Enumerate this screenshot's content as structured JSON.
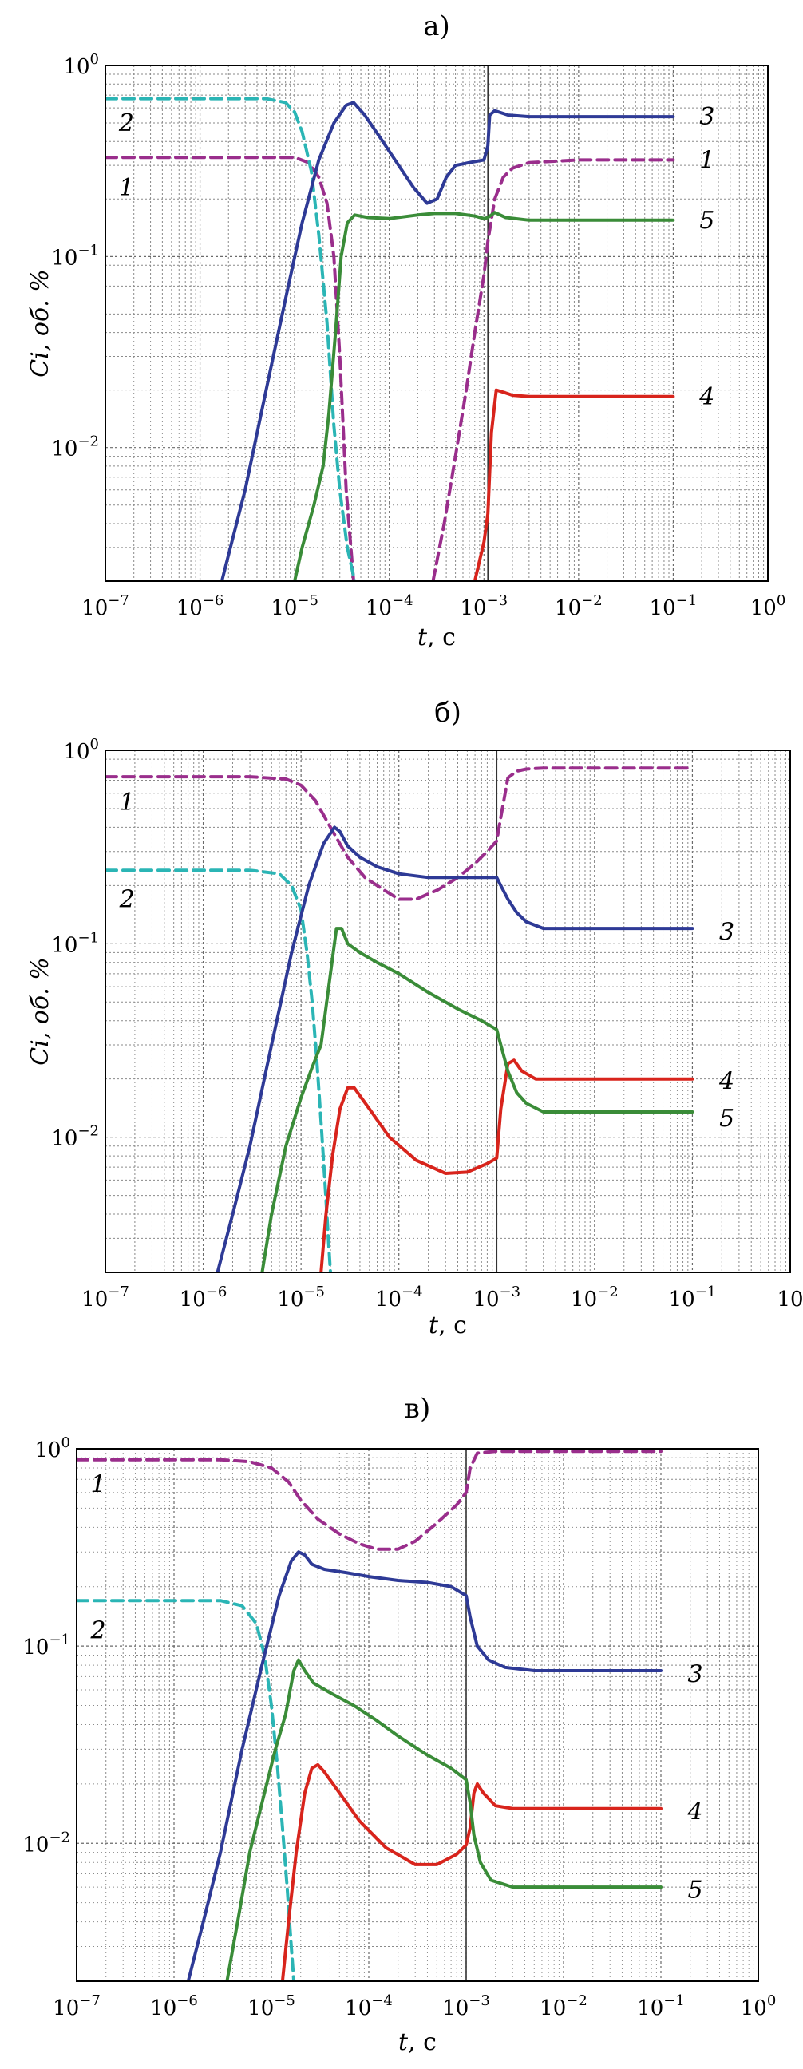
{
  "colors": {
    "species_1": "#9a2e8c",
    "species_2": "#2bb5b5",
    "species_3": "#2e3a96",
    "species_4": "#d8241c",
    "species_5": "#3a8c38"
  },
  "chart_data": [
    {
      "type": "line",
      "title": "а)",
      "xlabel": "t",
      "xlabel_unit": ", с",
      "ylabel": "Ci, об. %",
      "xscale": "log",
      "yscale": "log",
      "xlim": [
        1e-07,
        1
      ],
      "ylim": [
        0.002,
        1
      ],
      "xticks": [
        {
          "value": 1e-07,
          "base": "10",
          "exp": "−7"
        },
        {
          "value": 1e-06,
          "base": "10",
          "exp": "−6"
        },
        {
          "value": 1e-05,
          "base": "10",
          "exp": "−5"
        },
        {
          "value": 0.0001,
          "base": "10",
          "exp": "−4"
        },
        {
          "value": 0.001,
          "base": "10",
          "exp": "−3"
        },
        {
          "value": 0.01,
          "base": "10",
          "exp": "−2"
        },
        {
          "value": 0.1,
          "base": "10",
          "exp": "−1"
        },
        {
          "value": 1,
          "base": "10",
          "exp": "0"
        }
      ],
      "yticks": [
        {
          "value": 1,
          "base": "10",
          "exp": "0"
        },
        {
          "value": 0.1,
          "base": "10",
          "exp": "−1"
        },
        {
          "value": 0.01,
          "base": "10",
          "exp": "−2"
        }
      ],
      "vline": 0.0011,
      "grid": true,
      "series": [
        {
          "name": "1",
          "dashed": true,
          "color_key": "species_1",
          "x": [
            1e-07,
            5e-06,
            1e-05,
            1.4e-05,
            1.8e-05,
            2.2e-05,
            2.6e-05,
            3e-05,
            3.5e-05,
            4.2e-05
          ],
          "y": [
            0.33,
            0.33,
            0.33,
            0.31,
            0.26,
            0.19,
            0.1,
            0.03,
            0.006,
            0.002
          ],
          "label_value": [
            1.5e-07,
            0.23
          ]
        },
        {
          "name": "1",
          "dashed": true,
          "color_key": "species_1",
          "x": [
            0.00029,
            0.00038,
            0.0005,
            0.00065,
            0.0008,
            0.001,
            0.0011,
            0.0013,
            0.0016,
            0.002,
            0.003,
            0.01,
            0.1
          ],
          "y": [
            0.002,
            0.004,
            0.009,
            0.02,
            0.04,
            0.08,
            0.12,
            0.2,
            0.26,
            0.29,
            0.31,
            0.32,
            0.32
          ],
          "label_value": [
            0.15,
            0.32
          ]
        },
        {
          "name": "2",
          "dashed": true,
          "color_key": "species_2",
          "x": [
            1e-07,
            5e-06,
            8e-06,
            1e-05,
            1.2e-05,
            1.5e-05,
            1.8e-05,
            2.2e-05,
            2.6e-05,
            3e-05,
            3.6e-05,
            4.3e-05
          ],
          "y": [
            0.67,
            0.67,
            0.64,
            0.57,
            0.45,
            0.28,
            0.13,
            0.045,
            0.013,
            0.006,
            0.003,
            0.002
          ],
          "label_value": [
            1.5e-07,
            0.5
          ]
        },
        {
          "name": "3",
          "dashed": false,
          "color_key": "species_3",
          "x": [
            1.7e-06,
            3e-06,
            5e-06,
            8e-06,
            1.2e-05,
            1.8e-05,
            2.6e-05,
            3.5e-05,
            4.2e-05,
            5.5e-05,
            8e-05,
            0.00012,
            0.00018,
            0.00025,
            0.00032,
            0.0004,
            0.0005,
            0.0007,
            0.001,
            0.0011,
            0.00115,
            0.0013,
            0.0018,
            0.003,
            0.01,
            0.1
          ],
          "y": [
            0.002,
            0.006,
            0.02,
            0.06,
            0.15,
            0.32,
            0.5,
            0.62,
            0.64,
            0.55,
            0.42,
            0.31,
            0.23,
            0.19,
            0.2,
            0.26,
            0.3,
            0.31,
            0.32,
            0.38,
            0.55,
            0.58,
            0.55,
            0.54,
            0.54,
            0.54
          ],
          "label_value": [
            0.15,
            0.54
          ]
        },
        {
          "name": "4",
          "dashed": false,
          "color_key": "species_4",
          "x": [
            0.0008,
            0.001,
            0.0011,
            0.0012,
            0.00135,
            0.0016,
            0.002,
            0.003,
            0.01,
            0.1
          ],
          "y": [
            0.002,
            0.0032,
            0.0045,
            0.012,
            0.02,
            0.0195,
            0.0188,
            0.0185,
            0.0185,
            0.0185
          ],
          "label_value": [
            0.15,
            0.0185
          ]
        },
        {
          "name": "5",
          "dashed": false,
          "color_key": "species_5",
          "x": [
            1e-05,
            1.2e-05,
            1.6e-05,
            2e-05,
            2.3e-05,
            2.7e-05,
            3.1e-05,
            3.6e-05,
            4.3e-05,
            6e-05,
            0.0001,
            0.00015,
            0.0002,
            0.0003,
            0.0005,
            0.0008,
            0.001,
            0.0011,
            0.0013,
            0.0017,
            0.003,
            0.01,
            0.1
          ],
          "y": [
            0.002,
            0.003,
            0.005,
            0.008,
            0.015,
            0.04,
            0.1,
            0.15,
            0.165,
            0.16,
            0.158,
            0.162,
            0.165,
            0.168,
            0.168,
            0.163,
            0.158,
            0.16,
            0.17,
            0.16,
            0.155,
            0.155,
            0.155
          ],
          "label_value": [
            0.15,
            0.155
          ]
        }
      ]
    },
    {
      "type": "line",
      "title": "б)",
      "xlabel": "t",
      "xlabel_unit": ", с",
      "ylabel": "Ci, об. %",
      "xscale": "log",
      "yscale": "log",
      "xlim": [
        1e-07,
        1
      ],
      "ylim": [
        0.002,
        1
      ],
      "xticks": [
        {
          "value": 1e-07,
          "base": "10",
          "exp": "−7"
        },
        {
          "value": 1e-06,
          "base": "10",
          "exp": "−6"
        },
        {
          "value": 1e-05,
          "base": "10",
          "exp": "−5"
        },
        {
          "value": 0.0001,
          "base": "10",
          "exp": "−4"
        },
        {
          "value": 0.001,
          "base": "10",
          "exp": "−3"
        },
        {
          "value": 0.01,
          "base": "10",
          "exp": "−2"
        },
        {
          "value": 0.1,
          "base": "10",
          "exp": "−1"
        },
        {
          "value": 1,
          "base": "10",
          "exp": ""
        }
      ],
      "yticks": [
        {
          "value": 1,
          "base": "10",
          "exp": "0"
        },
        {
          "value": 0.1,
          "base": "10",
          "exp": "−1"
        },
        {
          "value": 0.01,
          "base": "10",
          "exp": "−2"
        }
      ],
      "vline": 0.001,
      "grid": true,
      "series": [
        {
          "name": "1",
          "dashed": true,
          "color_key": "species_1",
          "x": [
            1e-07,
            3e-06,
            7e-06,
            1e-05,
            1.4e-05,
            2e-05,
            3e-05,
            4.5e-05,
            7e-05,
            0.0001,
            0.00015,
            0.00025,
            0.0004,
            0.0006,
            0.0008,
            0.001,
            0.0011,
            0.0013,
            0.0016,
            0.002,
            0.003,
            0.01,
            0.1
          ],
          "y": [
            0.73,
            0.73,
            0.71,
            0.66,
            0.55,
            0.4,
            0.28,
            0.22,
            0.19,
            0.17,
            0.17,
            0.19,
            0.22,
            0.26,
            0.3,
            0.34,
            0.45,
            0.72,
            0.78,
            0.8,
            0.81,
            0.81,
            0.81
          ],
          "label_value": [
            1.5e-07,
            0.54
          ]
        },
        {
          "name": "2",
          "dashed": true,
          "color_key": "species_2",
          "x": [
            1e-07,
            3e-06,
            6e-06,
            8e-06,
            1e-05,
            1.15e-05,
            1.3e-05,
            1.45e-05,
            1.6e-05,
            1.75e-05,
            1.9e-05,
            2e-05
          ],
          "y": [
            0.24,
            0.24,
            0.23,
            0.2,
            0.15,
            0.09,
            0.05,
            0.025,
            0.012,
            0.006,
            0.003,
            0.002
          ],
          "label_value": [
            1.5e-07,
            0.17
          ]
        },
        {
          "name": "3",
          "dashed": false,
          "color_key": "species_3",
          "x": [
            1.4e-06,
            2e-06,
            3e-06,
            5e-06,
            8e-06,
            1.2e-05,
            1.7e-05,
            2.2e-05,
            2.5e-05,
            3e-05,
            4e-05,
            6e-05,
            0.0001,
            0.0002,
            0.0004,
            0.0007,
            0.001,
            0.0011,
            0.0013,
            0.0016,
            0.002,
            0.003,
            0.01,
            0.1
          ],
          "y": [
            0.002,
            0.004,
            0.009,
            0.03,
            0.09,
            0.2,
            0.33,
            0.4,
            0.38,
            0.32,
            0.28,
            0.25,
            0.23,
            0.22,
            0.22,
            0.22,
            0.22,
            0.2,
            0.17,
            0.145,
            0.13,
            0.12,
            0.12,
            0.12
          ],
          "label_value": [
            0.15,
            0.115
          ]
        },
        {
          "name": "4",
          "dashed": false,
          "color_key": "species_4",
          "x": [
            1.6e-05,
            1.8e-05,
            2.1e-05,
            2.5e-05,
            3e-05,
            3.5e-05,
            5e-05,
            8e-05,
            0.00015,
            0.0003,
            0.0005,
            0.0008,
            0.001,
            0.0011,
            0.0013,
            0.0015,
            0.0018,
            0.0025,
            0.005,
            0.01,
            0.1
          ],
          "y": [
            0.002,
            0.004,
            0.008,
            0.014,
            0.018,
            0.018,
            0.014,
            0.01,
            0.0076,
            0.0065,
            0.0066,
            0.0073,
            0.0078,
            0.014,
            0.024,
            0.025,
            0.022,
            0.02,
            0.02,
            0.02,
            0.02
          ],
          "label_value": [
            0.15,
            0.0195
          ]
        },
        {
          "name": "5",
          "dashed": false,
          "color_key": "species_5",
          "x": [
            4e-06,
            5e-06,
            7e-06,
            1e-05,
            1.3e-05,
            1.6e-05,
            2e-05,
            2.3e-05,
            2.6e-05,
            3e-05,
            4e-05,
            6e-05,
            0.0001,
            0.0002,
            0.0004,
            0.0007,
            0.001,
            0.0011,
            0.0013,
            0.0016,
            0.002,
            0.003,
            0.01,
            0.1
          ],
          "y": [
            0.002,
            0.004,
            0.009,
            0.016,
            0.023,
            0.03,
            0.07,
            0.12,
            0.12,
            0.1,
            0.09,
            0.08,
            0.07,
            0.056,
            0.046,
            0.04,
            0.036,
            0.03,
            0.022,
            0.017,
            0.015,
            0.0135,
            0.0135,
            0.0135
          ],
          "label_value": [
            0.15,
            0.0125
          ]
        }
      ]
    },
    {
      "type": "line",
      "title": "в)",
      "xlabel": "t",
      "xlabel_unit": ", с",
      "ylabel": "",
      "xscale": "log",
      "yscale": "log",
      "xlim": [
        1e-07,
        1
      ],
      "ylim": [
        0.002,
        1
      ],
      "xticks": [
        {
          "value": 1e-07,
          "base": "10",
          "exp": "−7"
        },
        {
          "value": 1e-06,
          "base": "10",
          "exp": "−6"
        },
        {
          "value": 1e-05,
          "base": "10",
          "exp": "−5"
        },
        {
          "value": 0.0001,
          "base": "10",
          "exp": "−4"
        },
        {
          "value": 0.001,
          "base": "10",
          "exp": "−3"
        },
        {
          "value": 0.01,
          "base": "10",
          "exp": "−2"
        },
        {
          "value": 0.1,
          "base": "10",
          "exp": "−1"
        },
        {
          "value": 1,
          "base": "10",
          "exp": "0"
        }
      ],
      "yticks": [
        {
          "value": 1,
          "base": "10",
          "exp": "0"
        },
        {
          "value": 0.1,
          "base": "10",
          "exp": "−1"
        },
        {
          "value": 0.01,
          "base": "10",
          "exp": "−2"
        }
      ],
      "vline": 0.001,
      "grid": true,
      "series": [
        {
          "name": "1",
          "dashed": true,
          "color_key": "species_1",
          "x": [
            1e-07,
            3e-06,
            6e-06,
            1e-05,
            1.5e-05,
            2e-05,
            3e-05,
            5e-05,
            8e-05,
            0.00012,
            0.0002,
            0.0003,
            0.0005,
            0.0008,
            0.001,
            0.0011,
            0.0013,
            0.0016,
            0.002,
            0.003,
            0.01,
            0.1
          ],
          "y": [
            0.88,
            0.88,
            0.86,
            0.8,
            0.68,
            0.55,
            0.44,
            0.37,
            0.33,
            0.31,
            0.31,
            0.34,
            0.42,
            0.52,
            0.6,
            0.8,
            0.95,
            0.96,
            0.97,
            0.97,
            0.97,
            0.97
          ],
          "label_value": [
            1.5e-07,
            0.66
          ]
        },
        {
          "name": "2",
          "dashed": true,
          "color_key": "species_2",
          "x": [
            1e-07,
            3e-06,
            5e-06,
            7e-06,
            8.5e-06,
            1e-05,
            1.15e-05,
            1.3e-05,
            1.45e-05,
            1.6e-05,
            1.7e-05
          ],
          "y": [
            0.17,
            0.17,
            0.16,
            0.13,
            0.09,
            0.05,
            0.025,
            0.012,
            0.006,
            0.003,
            0.002
          ],
          "label_value": [
            1.5e-07,
            0.12
          ]
        },
        {
          "name": "3",
          "dashed": false,
          "color_key": "species_3",
          "x": [
            1.4e-06,
            2e-06,
            3e-06,
            5e-06,
            8e-06,
            1.2e-05,
            1.6e-05,
            1.9e-05,
            2.2e-05,
            2.6e-05,
            3.5e-05,
            6e-05,
            0.0001,
            0.0002,
            0.0004,
            0.0007,
            0.001,
            0.0011,
            0.0013,
            0.0017,
            0.0025,
            0.005,
            0.01,
            0.1
          ],
          "y": [
            0.002,
            0.004,
            0.009,
            0.03,
            0.08,
            0.18,
            0.27,
            0.3,
            0.29,
            0.26,
            0.245,
            0.235,
            0.225,
            0.215,
            0.21,
            0.2,
            0.18,
            0.14,
            0.1,
            0.085,
            0.078,
            0.075,
            0.075,
            0.075
          ],
          "label_value": [
            0.15,
            0.072
          ]
        },
        {
          "name": "4",
          "dashed": false,
          "color_key": "species_4",
          "x": [
            1.3e-05,
            1.5e-05,
            1.8e-05,
            2.2e-05,
            2.6e-05,
            3e-05,
            3.5e-05,
            5e-05,
            8e-05,
            0.00015,
            0.0003,
            0.0005,
            0.0008,
            0.001,
            0.0011,
            0.0012,
            0.0013,
            0.0015,
            0.002,
            0.003,
            0.01,
            0.1
          ],
          "y": [
            0.002,
            0.004,
            0.009,
            0.018,
            0.024,
            0.025,
            0.023,
            0.018,
            0.013,
            0.0095,
            0.0078,
            0.0078,
            0.0088,
            0.0098,
            0.012,
            0.018,
            0.02,
            0.018,
            0.0155,
            0.015,
            0.015,
            0.015
          ],
          "label_value": [
            0.15,
            0.0145
          ]
        },
        {
          "name": "5",
          "dashed": false,
          "color_key": "species_5",
          "x": [
            3.5e-06,
            4.5e-06,
            6e-06,
            8e-06,
            1.1e-05,
            1.4e-05,
            1.7e-05,
            1.9e-05,
            2.2e-05,
            2.7e-05,
            4e-05,
            7e-05,
            0.00012,
            0.0002,
            0.0004,
            0.0007,
            0.001,
            0.0011,
            0.0012,
            0.0014,
            0.0018,
            0.003,
            0.01,
            0.1
          ],
          "y": [
            0.002,
            0.004,
            0.009,
            0.016,
            0.03,
            0.045,
            0.075,
            0.085,
            0.075,
            0.065,
            0.058,
            0.05,
            0.042,
            0.035,
            0.028,
            0.024,
            0.021,
            0.016,
            0.011,
            0.008,
            0.0065,
            0.006,
            0.006,
            0.006
          ],
          "label_value": [
            0.15,
            0.0058
          ]
        }
      ]
    }
  ]
}
